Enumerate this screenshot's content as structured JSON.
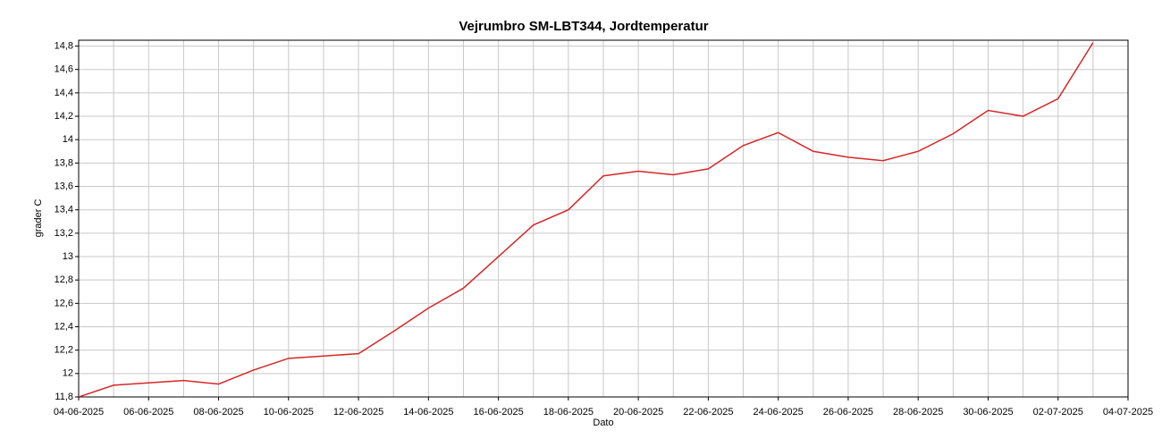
{
  "chart_data": {
    "type": "line",
    "title": "Vejrumbro SM-LBT344, Jordtemperatur",
    "xlabel": "Dato",
    "ylabel": "grader C",
    "x": [
      "04-06-2025",
      "05-06-2025",
      "06-06-2025",
      "07-06-2025",
      "08-06-2025",
      "09-06-2025",
      "10-06-2025",
      "11-06-2025",
      "12-06-2025",
      "13-06-2025",
      "14-06-2025",
      "15-06-2025",
      "16-06-2025",
      "17-06-2025",
      "18-06-2025",
      "19-06-2025",
      "20-06-2025",
      "21-06-2025",
      "22-06-2025",
      "23-06-2025",
      "24-06-2025",
      "25-06-2025",
      "26-06-2025",
      "27-06-2025",
      "28-06-2025",
      "29-06-2025",
      "30-06-2025",
      "01-07-2025",
      "02-07-2025",
      "03-07-2025"
    ],
    "series": [
      {
        "name": "Jordtemperatur",
        "color": "#d62728",
        "values": [
          11.8,
          11.9,
          11.92,
          11.94,
          11.91,
          12.03,
          12.13,
          12.15,
          12.17,
          12.36,
          12.56,
          12.73,
          13.0,
          13.27,
          13.4,
          13.69,
          13.73,
          13.7,
          13.75,
          13.95,
          14.06,
          13.9,
          13.85,
          13.82,
          13.9,
          14.05,
          14.25,
          14.2,
          14.35,
          14.83
        ]
      }
    ],
    "xticks": [
      "04-06-2025",
      "06-06-2025",
      "08-06-2025",
      "10-06-2025",
      "12-06-2025",
      "14-06-2025",
      "16-06-2025",
      "18-06-2025",
      "20-06-2025",
      "22-06-2025",
      "24-06-2025",
      "26-06-2025",
      "28-06-2025",
      "30-06-2025",
      "02-07-2025",
      "04-07-2025"
    ],
    "xlim": [
      "04-06-2025",
      "04-07-2025"
    ],
    "ylim": [
      11.8,
      14.85
    ],
    "yticks": [
      {
        "value": 11.8,
        "label": "11,8"
      },
      12,
      {
        "value": 12.2,
        "label": "12,2"
      },
      {
        "value": 12.4,
        "label": "12,4"
      },
      {
        "value": 12.6,
        "label": "12,6"
      },
      {
        "value": 12.8,
        "label": "12,8"
      },
      13,
      {
        "value": 13.2,
        "label": "13,2"
      },
      {
        "value": 13.4,
        "label": "13,4"
      },
      {
        "value": 13.6,
        "label": "13,6"
      },
      {
        "value": 13.8,
        "label": "13,8"
      },
      14,
      {
        "value": 14.2,
        "label": "14,2"
      },
      {
        "value": 14.4,
        "label": "14,4"
      },
      {
        "value": 14.6,
        "label": "14,6"
      },
      {
        "value": 14.8,
        "label": "14,8"
      }
    ],
    "grid": true
  }
}
